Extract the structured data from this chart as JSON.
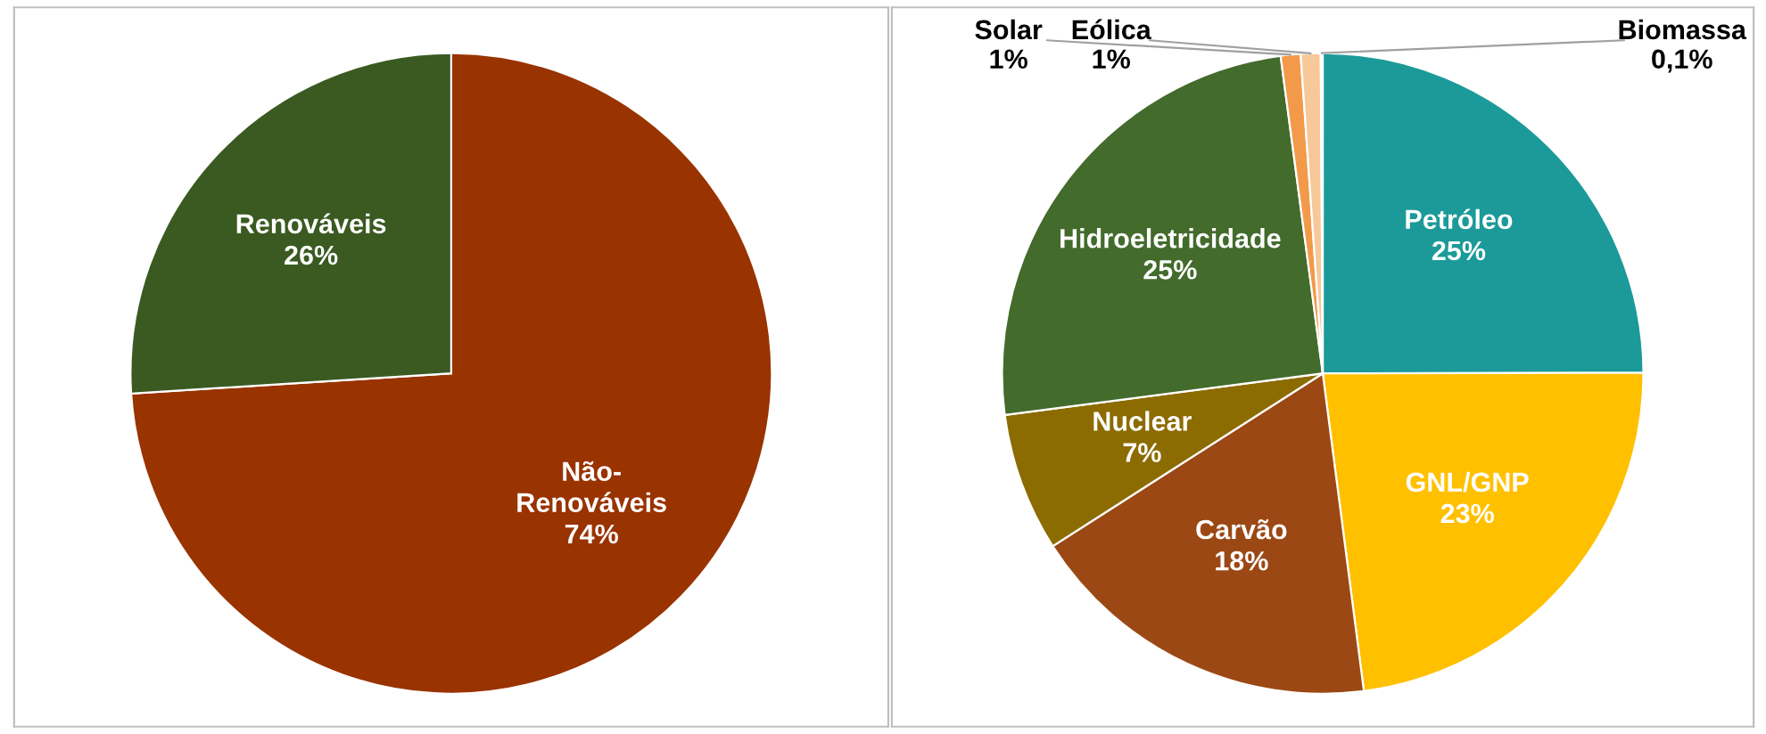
{
  "chart_data": [
    {
      "type": "pie",
      "categories": [
        "Não-\nRenováveis",
        "Renováveis"
      ],
      "values": [
        74,
        26
      ],
      "value_labels": [
        "74%",
        "26%"
      ],
      "colors": [
        "#993300",
        "#3a5a21"
      ]
    },
    {
      "type": "pie",
      "categories": [
        "Petróleo",
        "GNL/GNP",
        "Carvão",
        "Nuclear",
        "Hidroeletricidade",
        "Solar",
        "Eólica",
        "Biomassa"
      ],
      "values": [
        25,
        23,
        18,
        7,
        25,
        1,
        1,
        0.1
      ],
      "value_labels": [
        "25%",
        "23%",
        "18%",
        "7%",
        "25%",
        "1%",
        "1%",
        "0,1%"
      ],
      "colors": [
        "#1b9a99",
        "#ffc000",
        "#9b4814",
        "#8c6b00",
        "#436b2c",
        "#f29a4a",
        "#f6c89a",
        "#d9d9d9"
      ]
    }
  ]
}
